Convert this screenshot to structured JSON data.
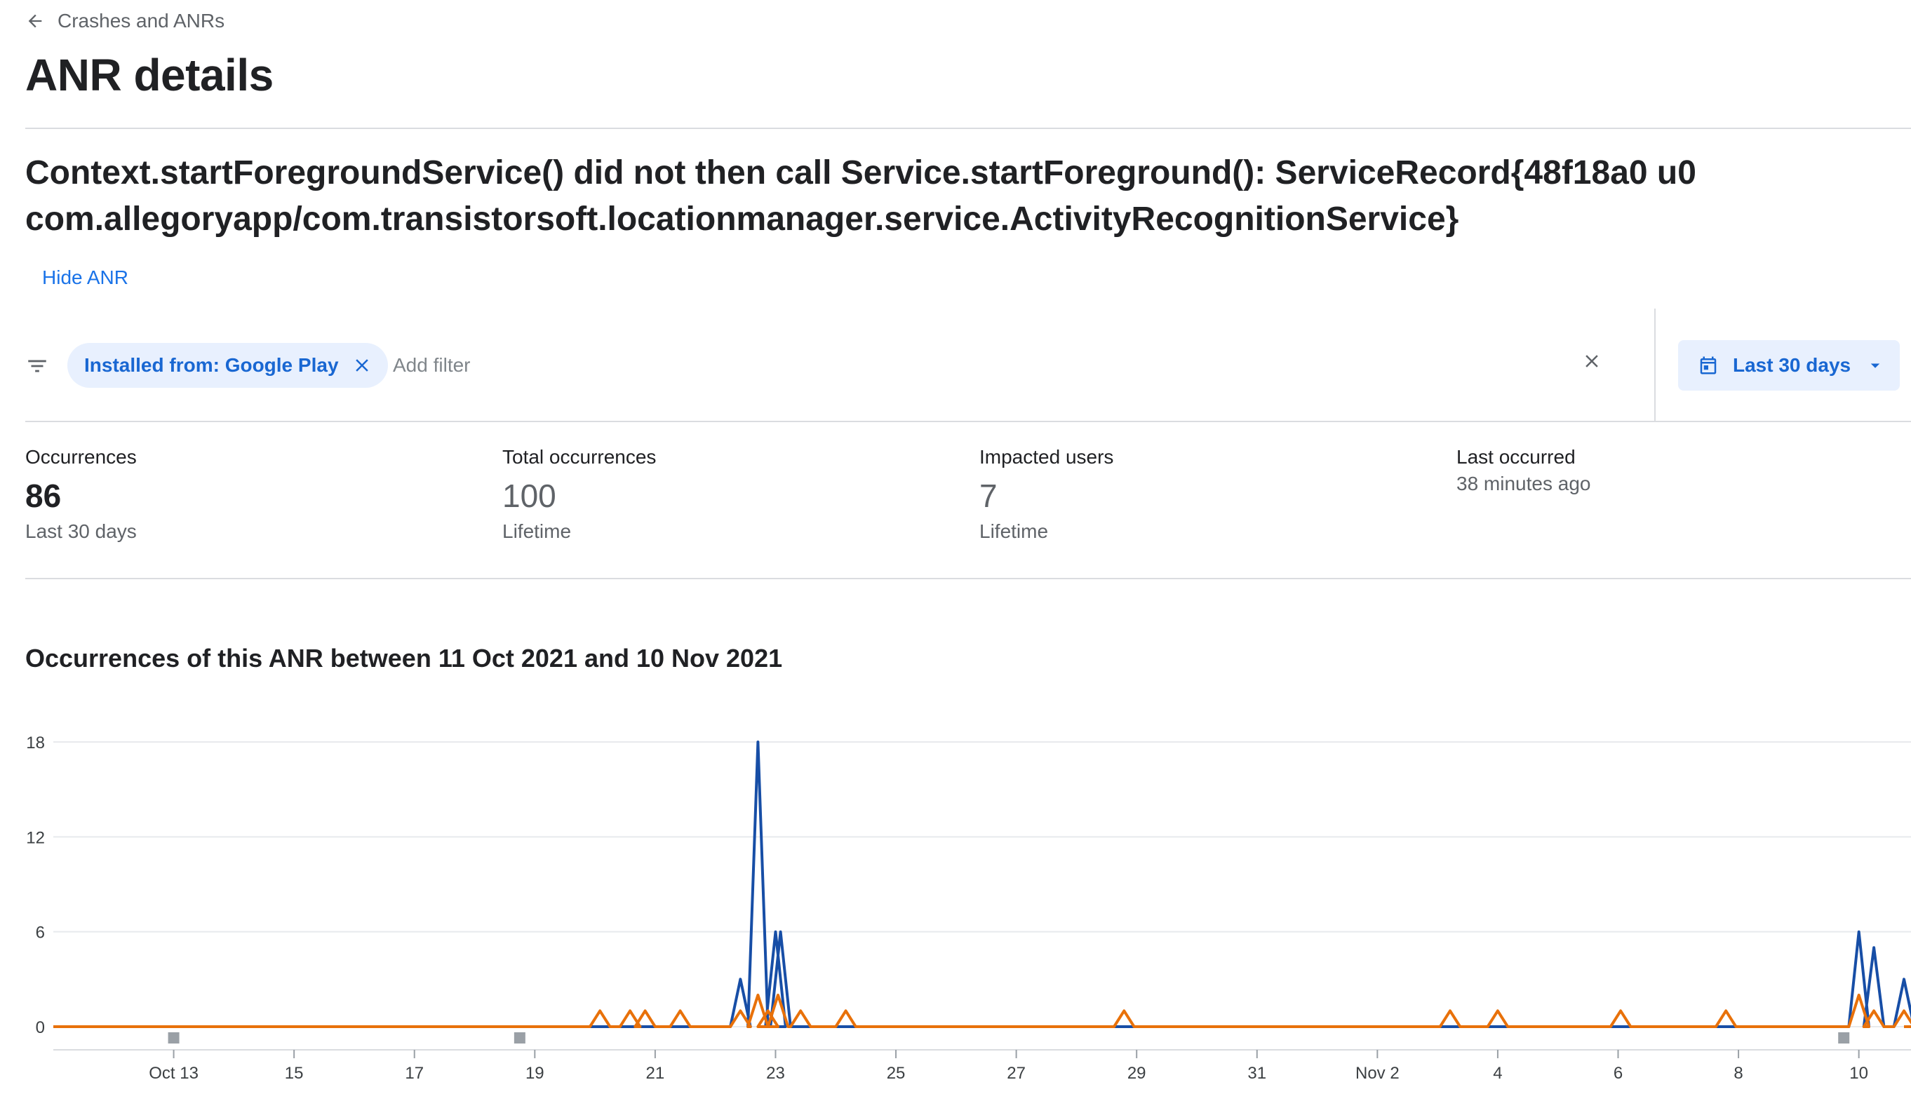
{
  "nav": {
    "back_label": "Crashes and ANRs"
  },
  "page": {
    "title": "ANR details"
  },
  "anr": {
    "title_line1": "Context.startForegroundService() did not then call Service.startForeground(): ServiceRecord{48f18a0 u0",
    "title_line2": "com.allegoryapp/com.transistorsoft.locationmanager.service.ActivityRecognitionService}",
    "hide_label": "Hide ANR"
  },
  "filters": {
    "chip_label": "Installed from: Google Play",
    "add_placeholder": "Add filter",
    "date_range": "Last 30 days"
  },
  "stats": [
    {
      "label": "Occurrences",
      "value": "86",
      "sub": "Last 30 days"
    },
    {
      "label": "Total occurrences",
      "value": "100",
      "sub": "Lifetime"
    },
    {
      "label": "Impacted users",
      "value": "7",
      "sub": "Lifetime"
    },
    {
      "label": "Last occurred",
      "value": "38 minutes ago"
    }
  ],
  "colors": {
    "accent": "#1a73e8",
    "chip_bg": "#e8f0fe",
    "series_blue": "#174ea6",
    "series_orange": "#e8710a"
  },
  "chart_data": {
    "type": "line",
    "title": "Occurrences of this ANR between 11 Oct 2021 and 10 Nov 2021",
    "xlabel": "",
    "ylabel": "",
    "ylim": [
      0,
      18
    ],
    "yticks": [
      0,
      6,
      12,
      18
    ],
    "xlim": [
      "2021-10-11",
      "2021-11-10T18:00"
    ],
    "xticks": [
      {
        "date": "2021-10-13",
        "label": "Oct 13"
      },
      {
        "date": "2021-10-15",
        "label": "15"
      },
      {
        "date": "2021-10-17",
        "label": "17"
      },
      {
        "date": "2021-10-19",
        "label": "19"
      },
      {
        "date": "2021-10-21",
        "label": "21"
      },
      {
        "date": "2021-10-23",
        "label": "23"
      },
      {
        "date": "2021-10-25",
        "label": "25"
      },
      {
        "date": "2021-10-27",
        "label": "27"
      },
      {
        "date": "2021-10-29",
        "label": "29"
      },
      {
        "date": "2021-10-31",
        "label": "31"
      },
      {
        "date": "2021-11-02",
        "label": "Nov 2"
      },
      {
        "date": "2021-11-04",
        "label": "4"
      },
      {
        "date": "2021-11-06",
        "label": "6"
      },
      {
        "date": "2021-11-08",
        "label": "8"
      },
      {
        "date": "2021-11-10",
        "label": "10"
      }
    ],
    "series": [
      {
        "color": "#174ea6",
        "spikes": [
          {
            "t": "2021-10-22T10:00",
            "v": 3
          },
          {
            "t": "2021-10-22T17:00",
            "v": 18
          },
          {
            "t": "2021-10-23T00:00",
            "v": 6
          },
          {
            "t": "2021-10-23T02:00",
            "v": 6
          },
          {
            "t": "2021-11-10T00:00",
            "v": 6
          },
          {
            "t": "2021-11-10T06:00",
            "v": 5
          },
          {
            "t": "2021-11-10T18:00",
            "v": 3
          }
        ]
      },
      {
        "color": "#e8710a",
        "spikes": [
          {
            "t": "2021-10-20T02:00",
            "v": 1
          },
          {
            "t": "2021-10-20T14:00",
            "v": 1
          },
          {
            "t": "2021-10-20T20:00",
            "v": 1
          },
          {
            "t": "2021-10-21T10:00",
            "v": 1
          },
          {
            "t": "2021-10-22T10:00",
            "v": 1
          },
          {
            "t": "2021-10-22T17:00",
            "v": 2
          },
          {
            "t": "2021-10-22T21:00",
            "v": 1
          },
          {
            "t": "2021-10-23T01:00",
            "v": 2
          },
          {
            "t": "2021-10-23T10:00",
            "v": 1
          },
          {
            "t": "2021-10-24T04:00",
            "v": 1
          },
          {
            "t": "2021-10-28T19:00",
            "v": 1
          },
          {
            "t": "2021-11-03T05:00",
            "v": 1
          },
          {
            "t": "2021-11-04T00:00",
            "v": 1
          },
          {
            "t": "2021-11-06T01:00",
            "v": 1
          },
          {
            "t": "2021-11-07T19:00",
            "v": 1
          },
          {
            "t": "2021-11-10T00:00",
            "v": 2
          },
          {
            "t": "2021-11-10T06:00",
            "v": 1
          },
          {
            "t": "2021-11-10T18:00",
            "v": 1
          }
        ]
      }
    ],
    "markers": [
      "2021-10-13",
      "2021-10-18T18:00",
      "2021-11-09T18:00"
    ],
    "grid": true,
    "legend": "none"
  }
}
